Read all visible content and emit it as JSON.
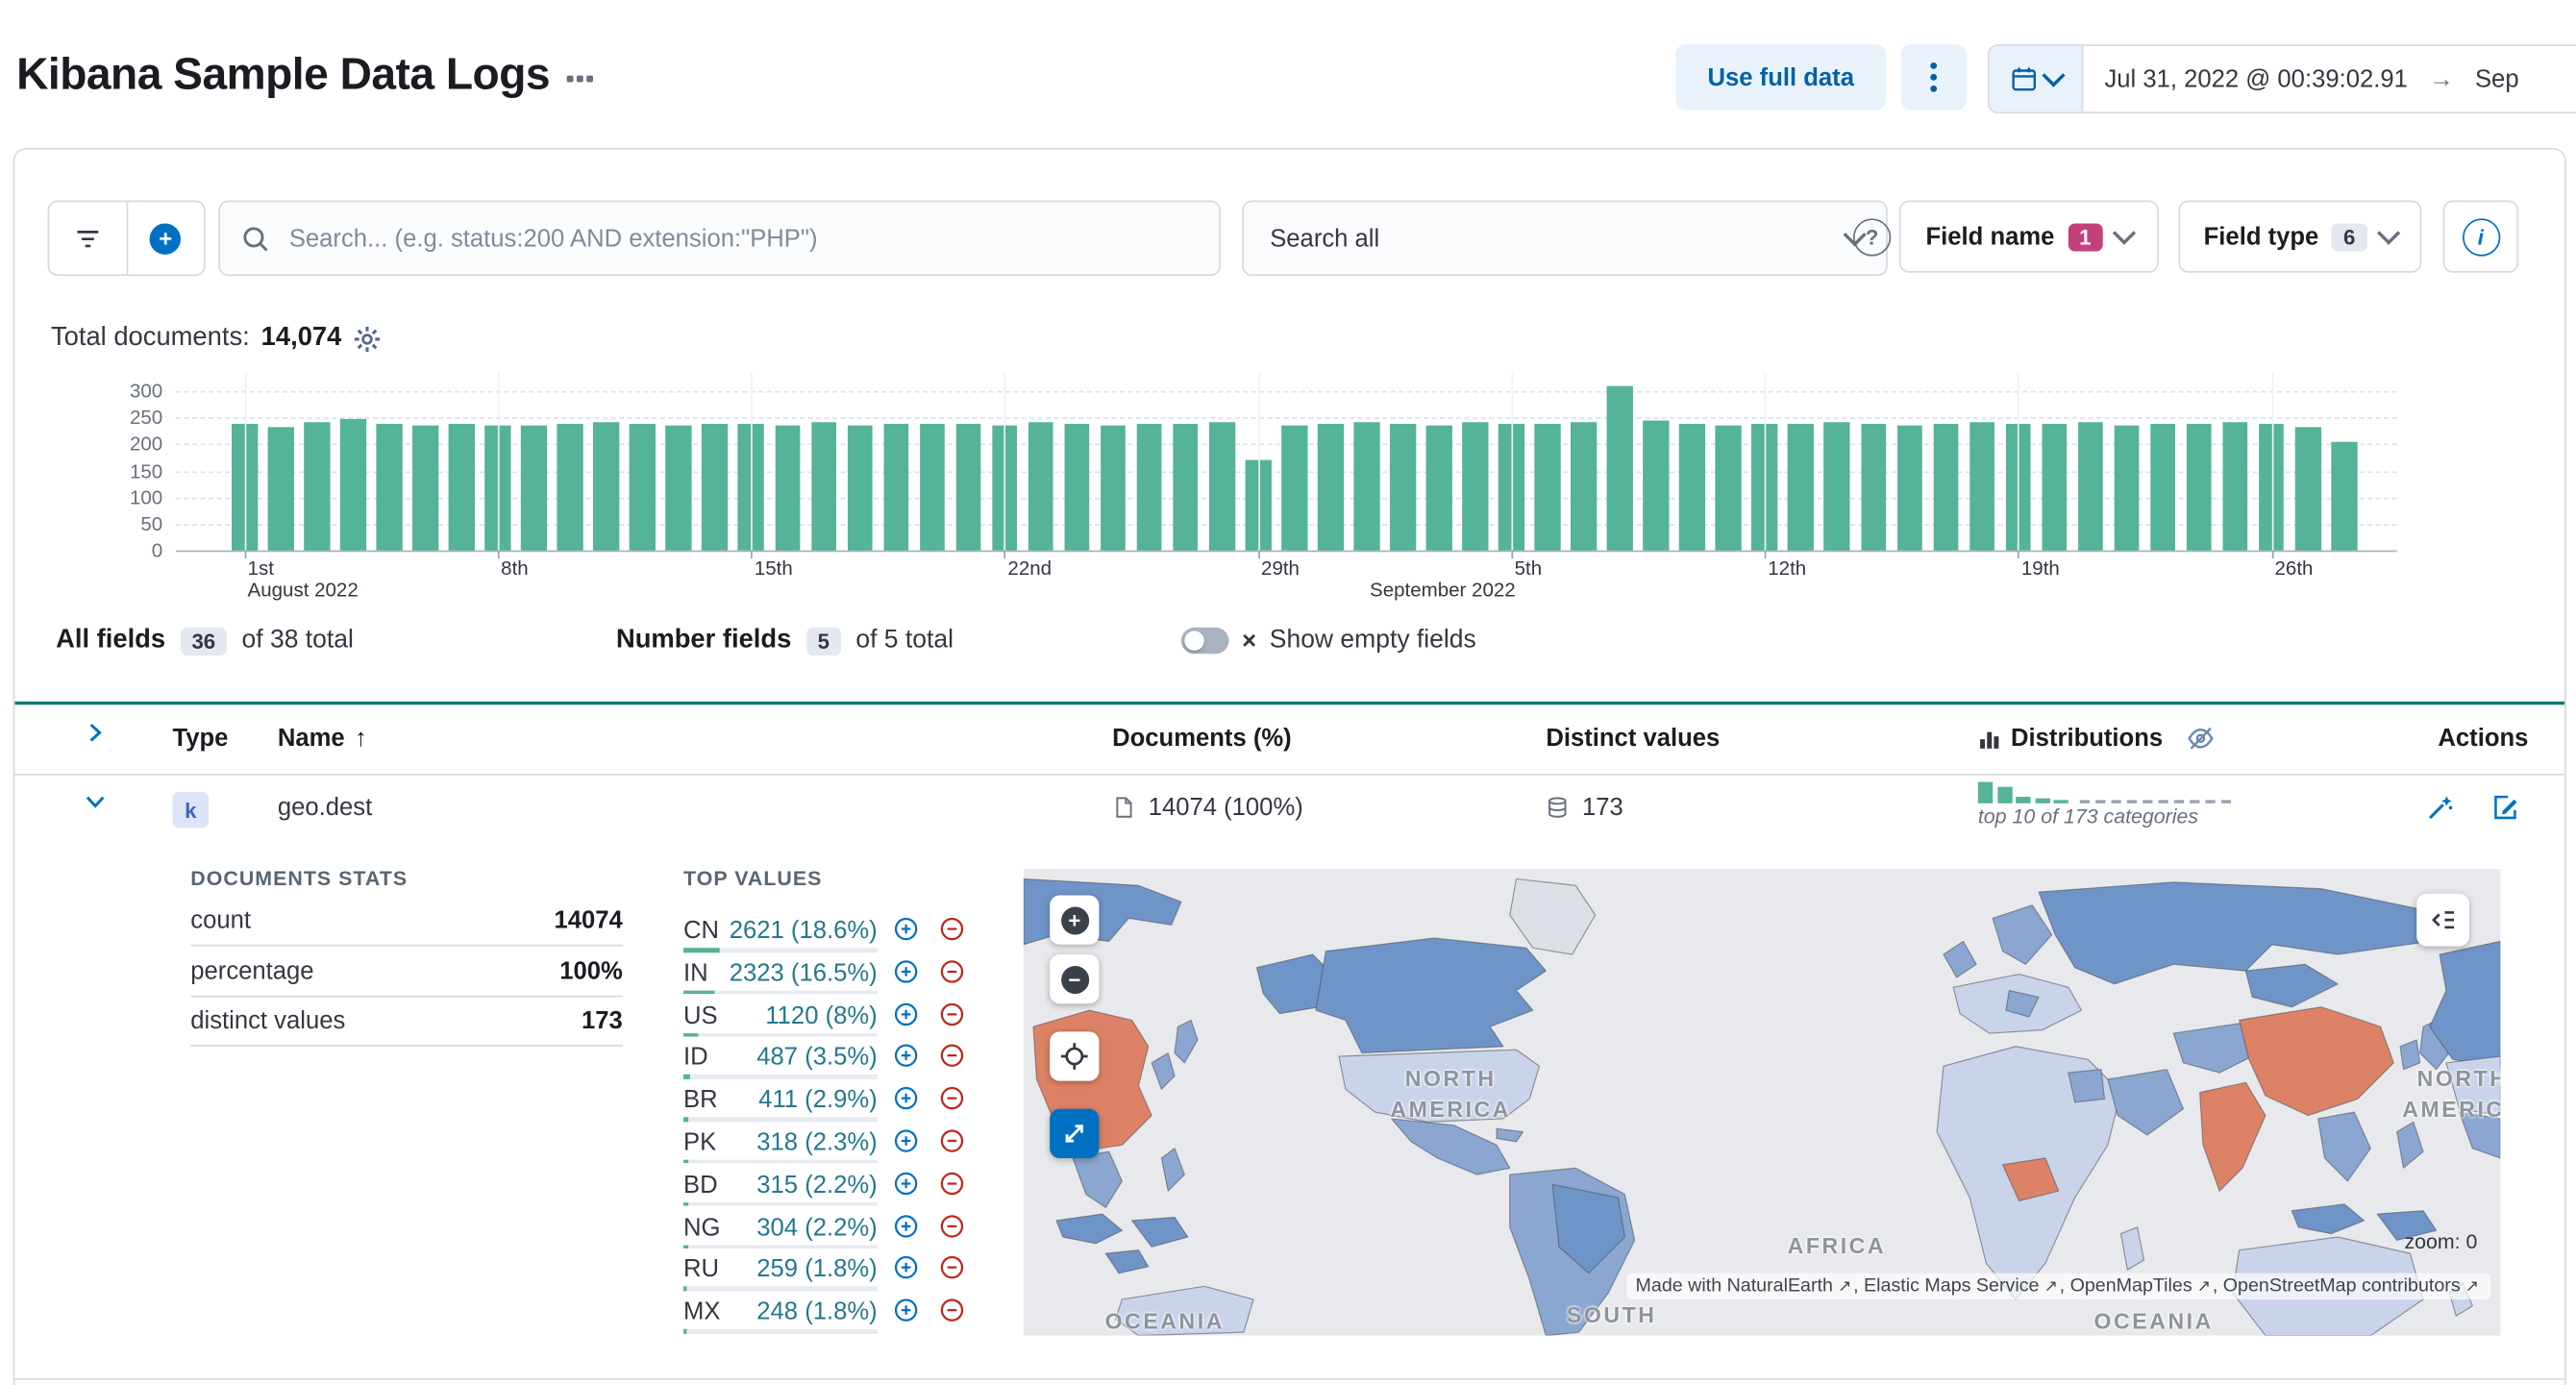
{
  "header": {
    "title": "Kibana Sample Data Logs",
    "use_full_data": "Use full data",
    "date_start": "Jul 31, 2022 @ 00:39:02.91",
    "date_arrow": "→",
    "date_end": "Sep"
  },
  "controls": {
    "search_placeholder": "Search... (e.g. status:200 AND extension:\"PHP\")",
    "search_all": "Search all",
    "field_name": {
      "label": "Field name",
      "count": "1"
    },
    "field_type": {
      "label": "Field type",
      "count": "6"
    }
  },
  "summary": {
    "label": "Total documents:",
    "value": "14,074"
  },
  "chart_data": {
    "type": "bar",
    "bar_color": "#54b399",
    "ylim": [
      0,
      300
    ],
    "y_ticks": [
      0,
      50,
      100,
      150,
      200,
      250,
      300
    ],
    "x_ticks": [
      {
        "i": 0,
        "label": "1st"
      },
      {
        "i": 7,
        "label": "8th"
      },
      {
        "i": 14,
        "label": "15th"
      },
      {
        "i": 21,
        "label": "22nd"
      },
      {
        "i": 28,
        "label": "29th"
      },
      {
        "i": 35,
        "label": "5th"
      },
      {
        "i": 42,
        "label": "12th"
      },
      {
        "i": 49,
        "label": "19th"
      },
      {
        "i": 56,
        "label": "26th"
      }
    ],
    "month_ticks": [
      {
        "i": 0,
        "label": "August 2022"
      },
      {
        "i": 31,
        "label": "September 2022"
      }
    ],
    "values": [
      237,
      232,
      240,
      246,
      238,
      235,
      239,
      236,
      234,
      238,
      240,
      237,
      235,
      239,
      238,
      236,
      240,
      235,
      238,
      237,
      239,
      236,
      240,
      238,
      235,
      239,
      237,
      240,
      170,
      236,
      238,
      241,
      239,
      236,
      240,
      237,
      238,
      242,
      310,
      244,
      238,
      236,
      239,
      237,
      240,
      238,
      236,
      239,
      241,
      237,
      238,
      240,
      236,
      239,
      237,
      240,
      238,
      233,
      205
    ]
  },
  "fields_bar": {
    "all_fields": {
      "label": "All fields",
      "count": "36",
      "suffix": "of 38 total"
    },
    "number_fields": {
      "label": "Number fields",
      "count": "5",
      "suffix": "of 5 total"
    },
    "show_empty": "Show empty fields"
  },
  "table": {
    "headers": {
      "type": "Type",
      "name": "Name",
      "documents": "Documents (%)",
      "distinct": "Distinct values",
      "distributions": "Distributions",
      "actions": "Actions"
    },
    "row": {
      "token": "k",
      "name": "geo.dest",
      "documents": "14074 (100%)",
      "distinct": "173",
      "distributions_note": "top 10 of 173 categories"
    }
  },
  "details": {
    "documents_stats": {
      "title": "DOCUMENTS STATS",
      "rows": [
        {
          "label": "count",
          "value": "14074"
        },
        {
          "label": "percentage",
          "value": "100%"
        },
        {
          "label": "distinct values",
          "value": "173"
        }
      ]
    },
    "top_values": {
      "title": "TOP VALUES",
      "rows": [
        {
          "key": "CN",
          "value": "2621 (18.6%)",
          "pct": 18.6
        },
        {
          "key": "IN",
          "value": "2323 (16.5%)",
          "pct": 16.5
        },
        {
          "key": "US",
          "value": "1120 (8%)",
          "pct": 8
        },
        {
          "key": "ID",
          "value": "487 (3.5%)",
          "pct": 3.5
        },
        {
          "key": "BR",
          "value": "411 (2.9%)",
          "pct": 2.9
        },
        {
          "key": "PK",
          "value": "318 (2.3%)",
          "pct": 2.3
        },
        {
          "key": "BD",
          "value": "315 (2.2%)",
          "pct": 2.2
        },
        {
          "key": "NG",
          "value": "304 (2.2%)",
          "pct": 2.2
        },
        {
          "key": "RU",
          "value": "259 (1.8%)",
          "pct": 1.8
        },
        {
          "key": "MX",
          "value": "248 (1.8%)",
          "pct": 1.8
        }
      ]
    },
    "map": {
      "labels": [
        "NORTH AMERICA",
        "AFRICA",
        "OCEANIA",
        "SOUTH",
        "NORTH AMERICA",
        "OCEANIA"
      ],
      "zoom": "zoom: 0",
      "attribution_prefix": "Made with ",
      "attribution_parts": [
        "NaturalEarth",
        "Elastic Maps Service",
        "OpenMapTiles",
        "OpenStreetMap contributors"
      ]
    }
  },
  "icons": {
    "plus": "+",
    "minus": "−",
    "help": "?",
    "info": "i",
    "sort_asc": "↑",
    "close": "×",
    "external": "↗"
  }
}
